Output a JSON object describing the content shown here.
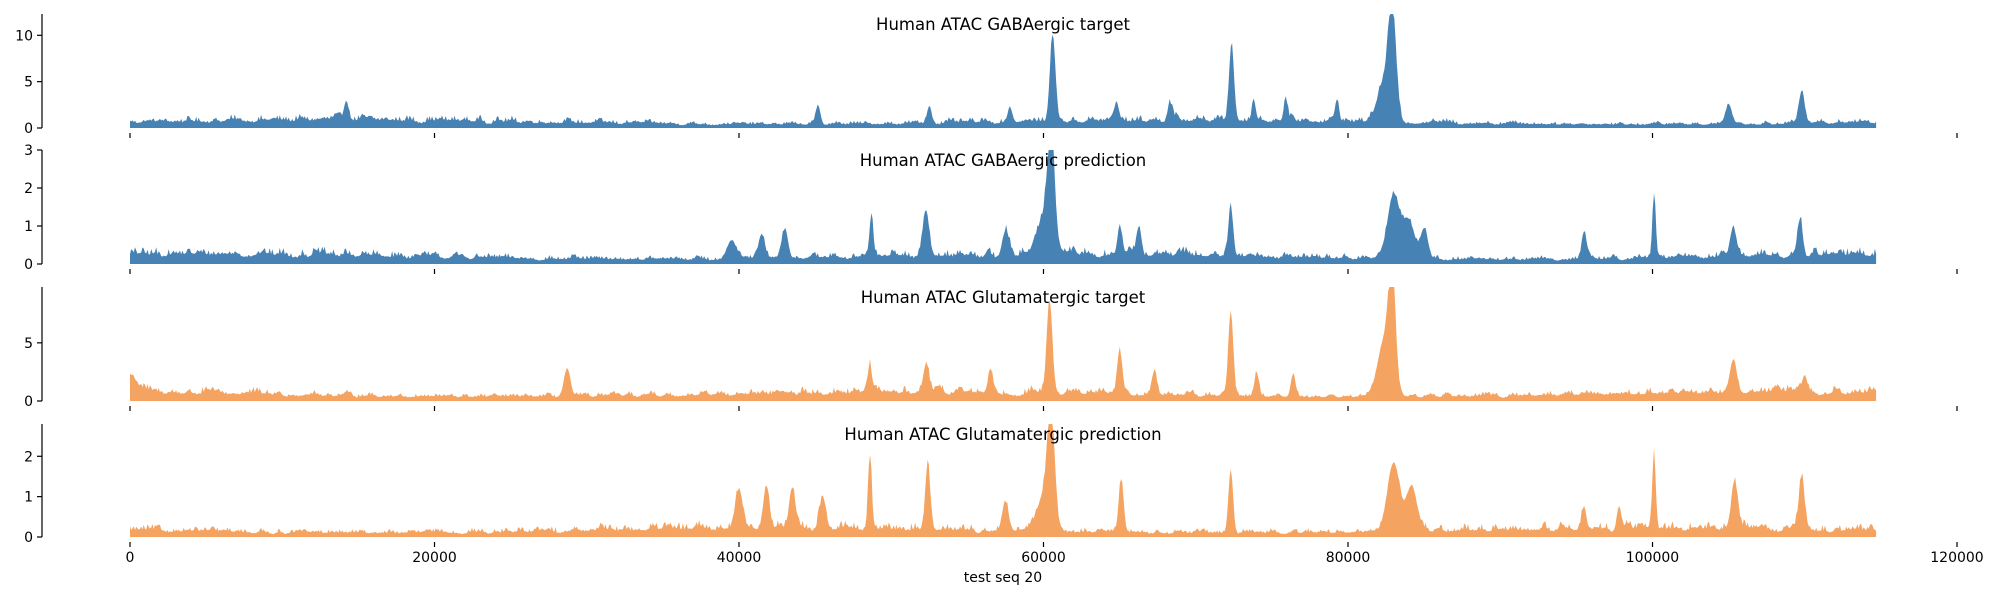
{
  "chart_data": {
    "type": "area",
    "x_label": "test seq 20",
    "x_range": [
      0,
      114688
    ],
    "x_ticks": [
      0,
      20000,
      40000,
      60000,
      80000,
      100000,
      120000
    ],
    "x_tick_labels": [
      "0",
      "20000",
      "40000",
      "60000",
      "80000",
      "100000",
      "120000"
    ],
    "grid": false,
    "colors": {
      "gabaergic": "#4682b4",
      "glutamatergic": "#f4a460"
    },
    "panels": [
      {
        "title": "Human ATAC GABAergic target",
        "color": "#4682b4",
        "ylim": [
          0,
          12.3
        ],
        "y_ticks": [
          0,
          5,
          10
        ],
        "y_tick_labels": [
          "0",
          "5",
          "10"
        ],
        "base_level": 1.0,
        "noise": 0.55,
        "peaks": [
          [
            60600,
            9.3,
            180
          ],
          [
            72350,
            8.2,
            160
          ],
          [
            82900,
            11.6,
            260
          ],
          [
            82300,
            4.0,
            400
          ],
          [
            109800,
            3.4,
            180
          ],
          [
            105000,
            2.2,
            200
          ],
          [
            75900,
            2.6,
            120
          ],
          [
            73800,
            2.5,
            120
          ],
          [
            79300,
            2.4,
            120
          ],
          [
            14200,
            2.3,
            150
          ],
          [
            68300,
            1.9,
            150
          ],
          [
            52500,
            1.9,
            150
          ],
          [
            64800,
            2.0,
            150
          ],
          [
            45200,
            1.9,
            150
          ],
          [
            57800,
            1.6,
            150
          ]
        ]
      },
      {
        "title": "Human ATAC GABAergic prediction",
        "color": "#4682b4",
        "ylim": [
          0,
          3.0
        ],
        "y_ticks": [
          0,
          1,
          2,
          3
        ],
        "y_tick_labels": [
          "0",
          "1",
          "2",
          "3"
        ],
        "base_level": 0.3,
        "noise": 0.18,
        "peaks": [
          [
            60500,
            2.6,
            230
          ],
          [
            60100,
            1.0,
            500
          ],
          [
            83000,
            1.7,
            400
          ],
          [
            84000,
            1.0,
            350
          ],
          [
            85000,
            0.8,
            250
          ],
          [
            100100,
            1.7,
            110
          ],
          [
            72300,
            1.3,
            150
          ],
          [
            52300,
            1.1,
            200
          ],
          [
            48700,
            1.1,
            120
          ],
          [
            109700,
            1.0,
            170
          ],
          [
            105300,
            0.8,
            200
          ],
          [
            95500,
            0.7,
            150
          ],
          [
            65000,
            0.8,
            150
          ],
          [
            66300,
            0.7,
            150
          ],
          [
            43000,
            0.7,
            200
          ],
          [
            41500,
            0.6,
            200
          ],
          [
            39500,
            0.5,
            300
          ],
          [
            57500,
            0.6,
            200
          ]
        ]
      },
      {
        "title": "Human ATAC Glutamatergic target",
        "color": "#f4a460",
        "ylim": [
          0,
          9.8
        ],
        "y_ticks": [
          0,
          5
        ],
        "y_tick_labels": [
          "0",
          "5"
        ],
        "base_level": 0.9,
        "noise": 0.5,
        "peaks": [
          [
            60400,
            7.8,
            180
          ],
          [
            72300,
            7.3,
            160
          ],
          [
            82900,
            9.5,
            220
          ],
          [
            82400,
            5.0,
            450
          ],
          [
            65000,
            3.8,
            160
          ],
          [
            105300,
            2.9,
            230
          ],
          [
            28700,
            2.3,
            200
          ],
          [
            67300,
            2.2,
            150
          ],
          [
            52300,
            2.0,
            200
          ],
          [
            56500,
            2.1,
            150
          ],
          [
            48600,
            2.2,
            120
          ],
          [
            74000,
            2.1,
            150
          ],
          [
            76400,
            2.0,
            150
          ],
          [
            0,
            1.5,
            500
          ],
          [
            110000,
            1.4,
            150
          ]
        ]
      },
      {
        "title": "Human ATAC Glutamatergic prediction",
        "color": "#f4a460",
        "ylim": [
          0,
          2.8
        ],
        "y_ticks": [
          0,
          1,
          2
        ],
        "y_tick_labels": [
          "0",
          "1",
          "2"
        ],
        "base_level": 0.25,
        "noise": 0.17,
        "peaks": [
          [
            60500,
            2.6,
            220
          ],
          [
            60100,
            1.0,
            450
          ],
          [
            100100,
            1.9,
            110
          ],
          [
            48600,
            1.8,
            120
          ],
          [
            83000,
            1.7,
            400
          ],
          [
            84200,
            1.1,
            350
          ],
          [
            52400,
            1.6,
            160
          ],
          [
            72300,
            1.6,
            150
          ],
          [
            109800,
            1.3,
            180
          ],
          [
            65100,
            1.3,
            160
          ],
          [
            105400,
            1.1,
            200
          ],
          [
            40000,
            1.0,
            250
          ],
          [
            41800,
            1.1,
            200
          ],
          [
            43500,
            1.0,
            200
          ],
          [
            45500,
            0.8,
            200
          ],
          [
            57500,
            0.7,
            200
          ],
          [
            95500,
            0.6,
            150
          ],
          [
            97800,
            0.6,
            150
          ]
        ]
      }
    ]
  }
}
